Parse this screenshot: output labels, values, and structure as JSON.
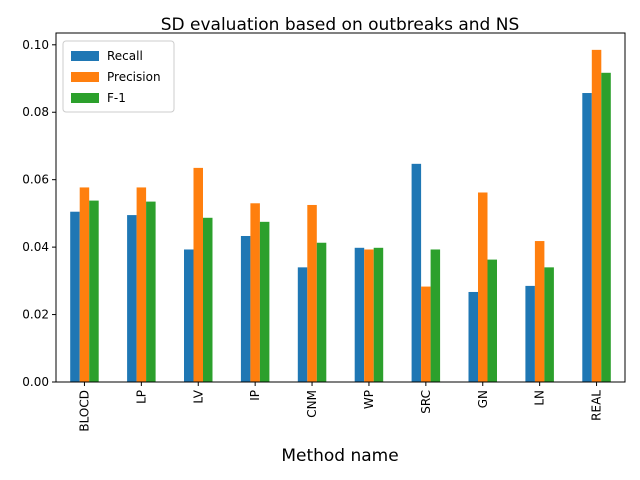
{
  "chart_data": {
    "type": "bar",
    "title": "SD evaluation based on outbreaks and NS",
    "xlabel": "Method name",
    "ylabel": "",
    "categories": [
      "BLOCD",
      "LP",
      "LV",
      "IP",
      "CNM",
      "WP",
      "SRC",
      "GN",
      "LN",
      "REAL"
    ],
    "series": [
      {
        "name": "Recall",
        "color": "#1f77b4",
        "values": [
          0.0505,
          0.0495,
          0.0393,
          0.0433,
          0.034,
          0.0398,
          0.0647,
          0.0267,
          0.0285,
          0.0857
        ]
      },
      {
        "name": "Precision",
        "color": "#ff7f0e",
        "values": [
          0.0577,
          0.0577,
          0.0635,
          0.053,
          0.0525,
          0.0393,
          0.0283,
          0.0562,
          0.0418,
          0.0985
        ]
      },
      {
        "name": "F-1",
        "color": "#2ca02c",
        "values": [
          0.0538,
          0.0535,
          0.0487,
          0.0475,
          0.0413,
          0.0398,
          0.0393,
          0.0363,
          0.034,
          0.0917
        ]
      }
    ],
    "ylim": [
      0,
      0.1035
    ],
    "yticks": [
      "0.00",
      "0.02",
      "0.04",
      "0.06",
      "0.08",
      "0.10"
    ],
    "grid": false,
    "legend_position": "top-left"
  }
}
